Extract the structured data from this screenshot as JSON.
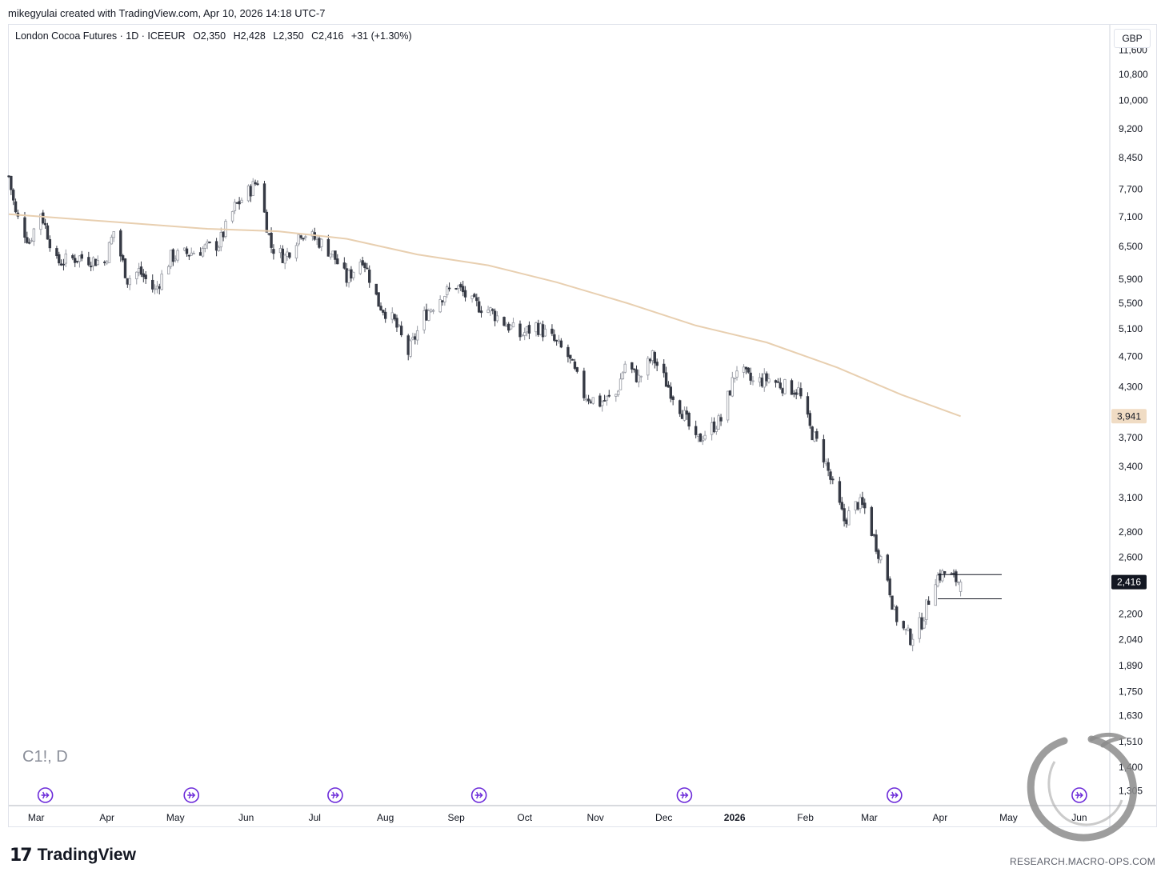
{
  "header": {
    "credit": "mikegyulai created with TradingView.com, Apr 10, 2026 14:18 UTC-7"
  },
  "legend": {
    "title": "London Cocoa Futures · 1D · ICEEUR",
    "open": "O2,350",
    "high": "H2,428",
    "low": "L2,350",
    "close": "C2,416",
    "change": "+31 (+1.30%)"
  },
  "symbol_watermark": "C1!, D",
  "currency": "GBP",
  "footer": {
    "brand": "TradingView",
    "site": "RESEARCH.MACRO-OPS.COM"
  },
  "colors": {
    "up_body": "#ffffff",
    "up_border": "#9598a1",
    "down_body": "#363a45",
    "ma_line": "#e8cfb0",
    "ma_badge": "#f0dcc4",
    "last_badge": "#131722",
    "event_icon": "#6c2bd9",
    "axis_text": "#131722"
  },
  "chart_data": {
    "type": "candlestick",
    "interval": "1D",
    "currency": "GBP",
    "y_scale": "log",
    "ylim": [
      1250,
      12500
    ],
    "y_ticks": [
      11600,
      10800,
      10000,
      9200,
      8450,
      7700,
      7100,
      6500,
      5900,
      5500,
      5100,
      4700,
      4300,
      3941,
      3700,
      3400,
      3100,
      2800,
      2600,
      2416,
      2200,
      2040,
      1890,
      1750,
      1630,
      1510,
      1400,
      1305
    ],
    "y_tick_labels": [
      "11,600",
      "10,800",
      "10,000",
      "9,200",
      "8,450",
      "7,700",
      "7,100",
      "6,500",
      "5,900",
      "5,500",
      "5,100",
      "4,700",
      "4,300",
      "3,941",
      "3,700",
      "3,400",
      "3,100",
      "2,800",
      "2,600",
      "2,416",
      "2,200",
      "2,040",
      "1,890",
      "1,750",
      "1,630",
      "1,510",
      "1,400",
      "1,305"
    ],
    "x_range": [
      "2025-02-17",
      "2026-06-14"
    ],
    "x_ticks": [
      {
        "date": "2025-03-01",
        "label": "Mar"
      },
      {
        "date": "2025-04-01",
        "label": "Apr"
      },
      {
        "date": "2025-05-01",
        "label": "May"
      },
      {
        "date": "2025-06-01",
        "label": "Jun"
      },
      {
        "date": "2025-07-01",
        "label": "Jul"
      },
      {
        "date": "2025-08-01",
        "label": "Aug"
      },
      {
        "date": "2025-09-01",
        "label": "Sep"
      },
      {
        "date": "2025-10-01",
        "label": "Oct"
      },
      {
        "date": "2025-11-01",
        "label": "Nov"
      },
      {
        "date": "2025-12-01",
        "label": "Dec"
      },
      {
        "date": "2026-01-01",
        "label": "2026"
      },
      {
        "date": "2026-02-01",
        "label": "Feb"
      },
      {
        "date": "2026-03-01",
        "label": "Mar"
      },
      {
        "date": "2026-04-01",
        "label": "Apr"
      },
      {
        "date": "2026-05-01",
        "label": "May"
      },
      {
        "date": "2026-06-01",
        "label": "Jun"
      }
    ],
    "close_anchors": [
      [
        "2025-02-17",
        8000
      ],
      [
        "2025-02-20",
        7150
      ],
      [
        "2025-02-26",
        6600
      ],
      [
        "2025-03-03",
        7200
      ],
      [
        "2025-03-10",
        6200
      ],
      [
        "2025-03-20",
        6300
      ],
      [
        "2025-03-31",
        6200
      ],
      [
        "2025-04-04",
        6800
      ],
      [
        "2025-04-10",
        5900
      ],
      [
        "2025-04-15",
        6050
      ],
      [
        "2025-04-22",
        5700
      ],
      [
        "2025-04-29",
        6300
      ],
      [
        "2025-05-09",
        6400
      ],
      [
        "2025-05-20",
        6550
      ],
      [
        "2025-05-27",
        7300
      ],
      [
        "2025-06-03",
        7700
      ],
      [
        "2025-06-06",
        7900
      ],
      [
        "2025-06-12",
        6500
      ],
      [
        "2025-06-18",
        6300
      ],
      [
        "2025-06-25",
        6800
      ],
      [
        "2025-07-03",
        6600
      ],
      [
        "2025-07-09",
        6350
      ],
      [
        "2025-07-15",
        5900
      ],
      [
        "2025-07-22",
        6300
      ],
      [
        "2025-07-29",
        5500
      ],
      [
        "2025-08-05",
        5200
      ],
      [
        "2025-08-11",
        4750
      ],
      [
        "2025-08-18",
        5300
      ],
      [
        "2025-08-25",
        5600
      ],
      [
        "2025-09-01",
        5800
      ],
      [
        "2025-09-08",
        5500
      ],
      [
        "2025-09-15",
        5400
      ],
      [
        "2025-09-22",
        5200
      ],
      [
        "2025-09-29",
        5000
      ],
      [
        "2025-10-06",
        5150
      ],
      [
        "2025-10-13",
        4950
      ],
      [
        "2025-10-20",
        4700
      ],
      [
        "2025-10-27",
        4200
      ],
      [
        "2025-11-03",
        4100
      ],
      [
        "2025-11-10",
        4200
      ],
      [
        "2025-11-14",
        4600
      ],
      [
        "2025-11-20",
        4400
      ],
      [
        "2025-11-26",
        4700
      ],
      [
        "2025-12-03",
        4300
      ],
      [
        "2025-12-09",
        4000
      ],
      [
        "2025-12-15",
        3650
      ],
      [
        "2025-12-19",
        3750
      ],
      [
        "2025-12-26",
        3900
      ],
      [
        "2026-01-02",
        4550
      ],
      [
        "2026-01-09",
        4350
      ],
      [
        "2026-01-16",
        4400
      ],
      [
        "2026-01-23",
        4300
      ],
      [
        "2026-01-29",
        4250
      ],
      [
        "2026-02-03",
        3800
      ],
      [
        "2026-02-09",
        3500
      ],
      [
        "2026-02-13",
        3200
      ],
      [
        "2026-02-18",
        2900
      ],
      [
        "2026-02-24",
        3050
      ],
      [
        "2026-02-27",
        3000
      ],
      [
        "2026-03-03",
        2750
      ],
      [
        "2026-03-09",
        2450
      ],
      [
        "2026-03-12",
        2200
      ],
      [
        "2026-03-16",
        2100
      ],
      [
        "2026-03-19",
        2050
      ],
      [
        "2026-03-24",
        2150
      ],
      [
        "2026-03-30",
        2450
      ],
      [
        "2026-04-03",
        2480
      ],
      [
        "2026-04-10",
        2416
      ]
    ],
    "ma_200": [
      [
        "2025-02-17",
        7150
      ],
      [
        "2025-04-01",
        7000
      ],
      [
        "2025-05-15",
        6850
      ],
      [
        "2025-06-15",
        6800
      ],
      [
        "2025-07-15",
        6650
      ],
      [
        "2025-08-15",
        6350
      ],
      [
        "2025-09-15",
        6150
      ],
      [
        "2025-10-15",
        5850
      ],
      [
        "2025-11-15",
        5500
      ],
      [
        "2025-12-15",
        5150
      ],
      [
        "2026-01-15",
        4900
      ],
      [
        "2026-02-15",
        4550
      ],
      [
        "2026-03-15",
        4200
      ],
      [
        "2026-04-10",
        3941
      ]
    ],
    "ma_last": 3941,
    "last_price": 2416,
    "range_box": {
      "x0": "2026-03-31",
      "x1": "2026-04-28",
      "y_high": 2470,
      "y_low": 2300
    },
    "event_markers": [
      "2025-03-05",
      "2025-05-08",
      "2025-07-10",
      "2025-09-11",
      "2025-12-10",
      "2026-03-12",
      "2026-06-01"
    ]
  }
}
